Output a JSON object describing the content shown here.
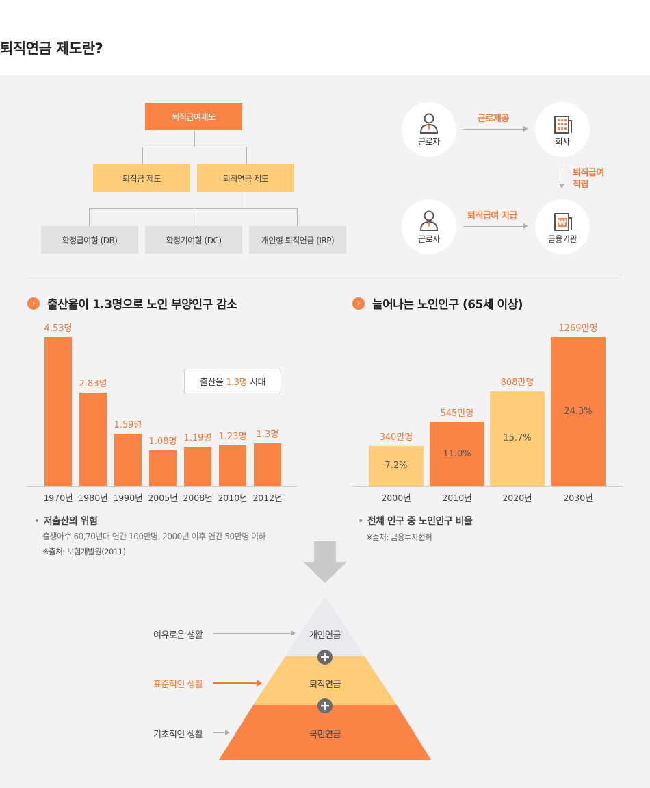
{
  "page_title": "퇴직연금 제도란?",
  "org_chart": {
    "root": "퇴직급여제도",
    "level2": [
      "퇴직금 제도",
      "퇴직연금 제도"
    ],
    "level3": [
      "확정급여형 (DB)",
      "확정기여형 (DC)",
      "개인형 퇴직연금 (IRP)"
    ]
  },
  "flow": {
    "worker1": "근로자",
    "company": "회사",
    "worker2": "근로자",
    "institution": "금융기관",
    "label_labor": "근로제공",
    "label_accumulate_1": "퇴직급여",
    "label_accumulate_2": "적립",
    "label_payment": "퇴직급여 지급",
    "icons": [
      "person-icon",
      "building-icon",
      "person-icon",
      "bank-icon"
    ]
  },
  "left_section": {
    "heading": "출산율이 1.3명으로 노인 부양인구 감소",
    "callout_prefix": "출산율",
    "callout_highlight": "1.3명",
    "callout_suffix": "시대",
    "note_title": "저출산의 위험",
    "note_text": "출생아수 60,70년대 연간 100만명, 2000년 이후 연간 50만명 이하",
    "note_source": "※출처: 보험개발원(2011)"
  },
  "right_section": {
    "heading": "늘어나는 노인인구 (65세 이상)",
    "note_title": "전체 인구 중 노인인구 비율",
    "note_source": "※출처: 금융투자협회"
  },
  "chart_data": [
    {
      "type": "bar",
      "title": "출산율이 1.3명으로 노인 부양인구 감소",
      "categories": [
        "1970년",
        "1980년",
        "1990년",
        "2005년",
        "2008년",
        "2010년",
        "2012년"
      ],
      "values": [
        4.53,
        2.83,
        1.59,
        1.08,
        1.19,
        1.23,
        1.3
      ],
      "value_labels": [
        "4.53명",
        "2.83명",
        "1.59명",
        "1.08명",
        "1.19명",
        "1.23명",
        "1.3명"
      ],
      "ylim": [
        0,
        4.53
      ],
      "color": "#f98446",
      "grid": false
    },
    {
      "type": "bar",
      "title": "늘어나는 노인인구 (65세 이상)",
      "categories": [
        "2000년",
        "2010년",
        "2020년",
        "2030년"
      ],
      "values": [
        340,
        545,
        808,
        1269
      ],
      "value_labels": [
        "340만명",
        "545만명",
        "808만명",
        "1269만명"
      ],
      "percent_labels": [
        "7.2%",
        "11.0%",
        "15.7%",
        "24.3%"
      ],
      "colors": [
        "#ffcd7a",
        "#f98446",
        "#ffcd7a",
        "#f98446"
      ],
      "ylim": [
        0,
        1269
      ],
      "grid": false
    }
  ],
  "pyramid": {
    "levels": [
      "개인연금",
      "퇴직연금",
      "국민연금"
    ],
    "side_labels": [
      "여유로운 생활",
      "표준적인 생활",
      "기초적인 생활"
    ],
    "colors": [
      "#e9e9ee",
      "#ffcd7a",
      "#f98446"
    ],
    "accent": "#f07a3a"
  }
}
